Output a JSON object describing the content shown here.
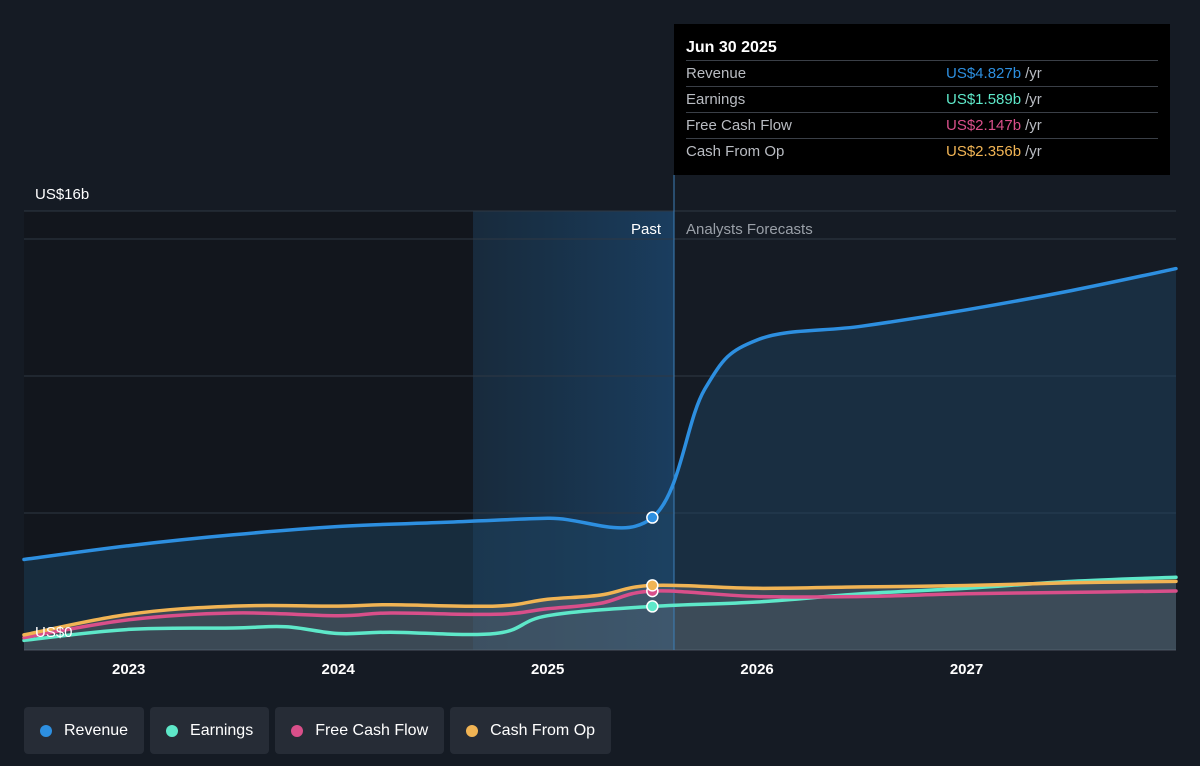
{
  "chart_data": {
    "type": "line",
    "y_axis": {
      "top_label": "US$16b",
      "bottom_label": "US$0",
      "ylim": [
        0,
        16
      ]
    },
    "x_axis": {
      "tick_labels": [
        "2023",
        "2024",
        "2025",
        "2026",
        "2027"
      ],
      "range": [
        2022.5,
        2028.0
      ]
    },
    "regions": {
      "past_label": "Past",
      "forecast_label": "Analysts Forecasts",
      "split_x": 2025.5
    },
    "grid": true,
    "legend_position": "bottom-left",
    "series": [
      {
        "name": "Revenue",
        "color": "#2d8fe0",
        "marker_value": 4.827,
        "points": [
          [
            2022.5,
            3.3
          ],
          [
            2023.0,
            3.8
          ],
          [
            2023.5,
            4.2
          ],
          [
            2024.0,
            4.5
          ],
          [
            2024.5,
            4.65
          ],
          [
            2025.0,
            4.8
          ],
          [
            2025.5,
            4.827
          ],
          [
            2025.75,
            9.5
          ],
          [
            2026.0,
            11.3
          ],
          [
            2026.5,
            11.8
          ],
          [
            2027.0,
            12.4
          ],
          [
            2027.5,
            13.1
          ],
          [
            2028.0,
            13.9
          ]
        ]
      },
      {
        "name": "Earnings",
        "color": "#5ee8c9",
        "marker_value": 1.589,
        "points": [
          [
            2022.5,
            0.35
          ],
          [
            2023.0,
            0.75
          ],
          [
            2023.5,
            0.8
          ],
          [
            2023.75,
            0.85
          ],
          [
            2024.0,
            0.6
          ],
          [
            2024.25,
            0.65
          ],
          [
            2024.75,
            0.6
          ],
          [
            2025.0,
            1.25
          ],
          [
            2025.5,
            1.589
          ],
          [
            2026.0,
            1.75
          ],
          [
            2026.5,
            2.05
          ],
          [
            2027.0,
            2.25
          ],
          [
            2027.5,
            2.5
          ],
          [
            2028.0,
            2.65
          ]
        ]
      },
      {
        "name": "Free Cash Flow",
        "color": "#d94f8a",
        "marker_value": 2.147,
        "points": [
          [
            2022.5,
            0.45
          ],
          [
            2023.0,
            1.1
          ],
          [
            2023.5,
            1.35
          ],
          [
            2024.0,
            1.25
          ],
          [
            2024.25,
            1.35
          ],
          [
            2024.75,
            1.3
          ],
          [
            2025.0,
            1.5
          ],
          [
            2025.25,
            1.7
          ],
          [
            2025.5,
            2.147
          ],
          [
            2026.0,
            1.95
          ],
          [
            2026.5,
            1.95
          ],
          [
            2027.0,
            2.05
          ],
          [
            2027.5,
            2.1
          ],
          [
            2028.0,
            2.15
          ]
        ]
      },
      {
        "name": "Cash From Op",
        "color": "#f1b454",
        "marker_value": 2.356,
        "points": [
          [
            2022.5,
            0.55
          ],
          [
            2023.0,
            1.3
          ],
          [
            2023.5,
            1.6
          ],
          [
            2024.0,
            1.6
          ],
          [
            2024.25,
            1.65
          ],
          [
            2024.75,
            1.6
          ],
          [
            2025.0,
            1.85
          ],
          [
            2025.25,
            2.0
          ],
          [
            2025.5,
            2.356
          ],
          [
            2026.0,
            2.25
          ],
          [
            2026.5,
            2.3
          ],
          [
            2027.0,
            2.35
          ],
          [
            2027.5,
            2.45
          ],
          [
            2028.0,
            2.5
          ]
        ]
      }
    ]
  },
  "tooltip": {
    "date": "Jun 30 2025",
    "unit": "/yr",
    "rows": [
      {
        "label": "Revenue",
        "value": "US$4.827b",
        "color": "#2d8fe0"
      },
      {
        "label": "Earnings",
        "value": "US$1.589b",
        "color": "#5ee8c9"
      },
      {
        "label": "Free Cash Flow",
        "value": "US$2.147b",
        "color": "#d94f8a"
      },
      {
        "label": "Cash From Op",
        "value": "US$2.356b",
        "color": "#f1b454"
      }
    ]
  },
  "legend": [
    {
      "label": "Revenue",
      "color": "#2d8fe0"
    },
    {
      "label": "Earnings",
      "color": "#5ee8c9"
    },
    {
      "label": "Free Cash Flow",
      "color": "#d94f8a"
    },
    {
      "label": "Cash From Op",
      "color": "#f1b454"
    }
  ]
}
